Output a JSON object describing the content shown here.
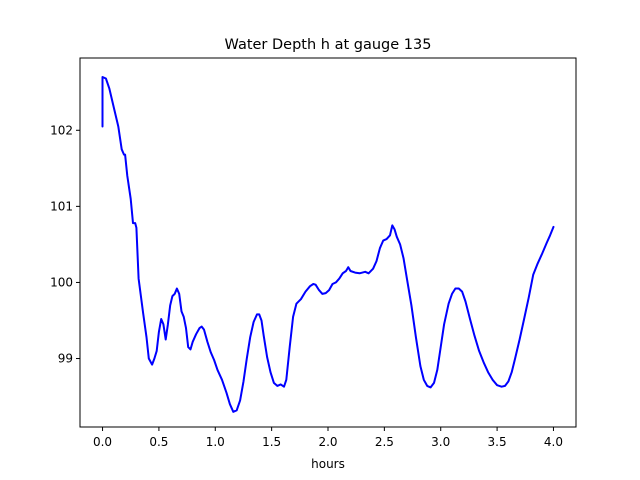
{
  "chart_data": {
    "type": "line",
    "title": "Water Depth h at gauge 135",
    "xlabel": "hours",
    "ylabel": "",
    "xlim": [
      -0.2,
      4.2
    ],
    "ylim": [
      98.1,
      102.95
    ],
    "xticks": [
      0.0,
      0.5,
      1.0,
      1.5,
      2.0,
      2.5,
      3.0,
      3.5,
      4.0
    ],
    "xtick_labels": [
      "0.0",
      "0.5",
      "1.0",
      "1.5",
      "2.0",
      "2.5",
      "3.0",
      "3.5",
      "4.0"
    ],
    "yticks": [
      99,
      100,
      101,
      102
    ],
    "ytick_labels": [
      "99",
      "100",
      "101",
      "102"
    ],
    "grid": false,
    "legend": "none",
    "series": [
      {
        "color": "#0000ff",
        "points": [
          [
            0.0,
            102.05
          ],
          [
            0.0,
            102.7
          ],
          [
            0.03,
            102.68
          ],
          [
            0.06,
            102.55
          ],
          [
            0.1,
            102.3
          ],
          [
            0.14,
            102.05
          ],
          [
            0.17,
            101.75
          ],
          [
            0.19,
            101.68
          ],
          [
            0.2,
            101.68
          ],
          [
            0.22,
            101.4
          ],
          [
            0.25,
            101.1
          ],
          [
            0.27,
            100.78
          ],
          [
            0.29,
            100.78
          ],
          [
            0.3,
            100.72
          ],
          [
            0.32,
            100.05
          ],
          [
            0.36,
            99.6
          ],
          [
            0.39,
            99.28
          ],
          [
            0.41,
            99.0
          ],
          [
            0.44,
            98.92
          ],
          [
            0.46,
            99.0
          ],
          [
            0.48,
            99.1
          ],
          [
            0.5,
            99.35
          ],
          [
            0.52,
            99.52
          ],
          [
            0.54,
            99.45
          ],
          [
            0.56,
            99.25
          ],
          [
            0.58,
            99.45
          ],
          [
            0.6,
            99.7
          ],
          [
            0.62,
            99.82
          ],
          [
            0.64,
            99.85
          ],
          [
            0.66,
            99.92
          ],
          [
            0.68,
            99.85
          ],
          [
            0.7,
            99.62
          ],
          [
            0.72,
            99.55
          ],
          [
            0.74,
            99.4
          ],
          [
            0.76,
            99.15
          ],
          [
            0.78,
            99.12
          ],
          [
            0.8,
            99.22
          ],
          [
            0.83,
            99.32
          ],
          [
            0.86,
            99.4
          ],
          [
            0.88,
            99.42
          ],
          [
            0.9,
            99.38
          ],
          [
            0.93,
            99.22
          ],
          [
            0.96,
            99.08
          ],
          [
            0.99,
            98.98
          ],
          [
            1.02,
            98.85
          ],
          [
            1.06,
            98.72
          ],
          [
            1.1,
            98.55
          ],
          [
            1.13,
            98.4
          ],
          [
            1.16,
            98.3
          ],
          [
            1.19,
            98.32
          ],
          [
            1.22,
            98.45
          ],
          [
            1.25,
            98.7
          ],
          [
            1.28,
            99.0
          ],
          [
            1.31,
            99.28
          ],
          [
            1.34,
            99.48
          ],
          [
            1.37,
            99.58
          ],
          [
            1.39,
            99.58
          ],
          [
            1.41,
            99.5
          ],
          [
            1.43,
            99.3
          ],
          [
            1.46,
            99.02
          ],
          [
            1.49,
            98.82
          ],
          [
            1.52,
            98.68
          ],
          [
            1.55,
            98.64
          ],
          [
            1.58,
            98.66
          ],
          [
            1.61,
            98.63
          ],
          [
            1.63,
            98.72
          ],
          [
            1.66,
            99.15
          ],
          [
            1.69,
            99.55
          ],
          [
            1.72,
            99.72
          ],
          [
            1.76,
            99.78
          ],
          [
            1.8,
            99.88
          ],
          [
            1.84,
            99.95
          ],
          [
            1.87,
            99.98
          ],
          [
            1.89,
            99.97
          ],
          [
            1.92,
            99.9
          ],
          [
            1.95,
            99.85
          ],
          [
            1.98,
            99.86
          ],
          [
            2.01,
            99.9
          ],
          [
            2.04,
            99.98
          ],
          [
            2.07,
            100.0
          ],
          [
            2.1,
            100.05
          ],
          [
            2.13,
            100.12
          ],
          [
            2.16,
            100.15
          ],
          [
            2.18,
            100.2
          ],
          [
            2.2,
            100.15
          ],
          [
            2.24,
            100.13
          ],
          [
            2.28,
            100.12
          ],
          [
            2.33,
            100.14
          ],
          [
            2.36,
            100.12
          ],
          [
            2.4,
            100.18
          ],
          [
            2.43,
            100.28
          ],
          [
            2.46,
            100.45
          ],
          [
            2.49,
            100.55
          ],
          [
            2.52,
            100.57
          ],
          [
            2.55,
            100.62
          ],
          [
            2.57,
            100.75
          ],
          [
            2.59,
            100.7
          ],
          [
            2.61,
            100.6
          ],
          [
            2.64,
            100.5
          ],
          [
            2.67,
            100.32
          ],
          [
            2.7,
            100.05
          ],
          [
            2.74,
            99.7
          ],
          [
            2.78,
            99.28
          ],
          [
            2.82,
            98.9
          ],
          [
            2.85,
            98.72
          ],
          [
            2.88,
            98.64
          ],
          [
            2.91,
            98.62
          ],
          [
            2.94,
            98.68
          ],
          [
            2.97,
            98.85
          ],
          [
            3.0,
            99.15
          ],
          [
            3.03,
            99.45
          ],
          [
            3.07,
            99.72
          ],
          [
            3.1,
            99.85
          ],
          [
            3.13,
            99.92
          ],
          [
            3.16,
            99.92
          ],
          [
            3.19,
            99.88
          ],
          [
            3.22,
            99.75
          ],
          [
            3.26,
            99.52
          ],
          [
            3.3,
            99.3
          ],
          [
            3.34,
            99.1
          ],
          [
            3.38,
            98.95
          ],
          [
            3.42,
            98.82
          ],
          [
            3.46,
            98.72
          ],
          [
            3.5,
            98.65
          ],
          [
            3.54,
            98.63
          ],
          [
            3.57,
            98.64
          ],
          [
            3.6,
            98.7
          ],
          [
            3.63,
            98.82
          ],
          [
            3.66,
            99.0
          ],
          [
            3.7,
            99.25
          ],
          [
            3.74,
            99.52
          ],
          [
            3.78,
            99.8
          ],
          [
            3.82,
            100.1
          ],
          [
            3.86,
            100.25
          ],
          [
            3.9,
            100.38
          ],
          [
            3.94,
            100.52
          ],
          [
            3.97,
            100.62
          ],
          [
            4.0,
            100.73
          ]
        ]
      }
    ]
  }
}
